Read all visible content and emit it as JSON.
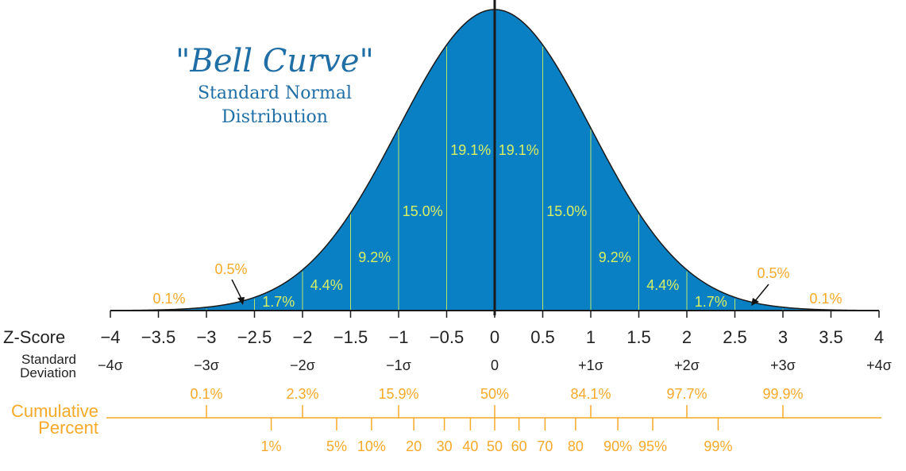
{
  "colors": {
    "fill": "#0a80c4",
    "segment_text": "#d7f063",
    "tail_text": "#f7a928",
    "cumulative": "#f7a928",
    "title": "#1f6fa6"
  },
  "title": {
    "main": "\"Bell Curve\"",
    "line1": "Standard Normal",
    "line2": "Distribution"
  },
  "chart_data": {
    "type": "area",
    "xlim": [
      -4,
      4
    ],
    "segments": [
      {
        "z": -0.25,
        "label": "19.1%"
      },
      {
        "z": 0.25,
        "label": "19.1%"
      },
      {
        "z": -0.75,
        "label": "15.0%"
      },
      {
        "z": 0.75,
        "label": "15.0%"
      },
      {
        "z": -1.25,
        "label": "9.2%"
      },
      {
        "z": 1.25,
        "label": "9.2%"
      },
      {
        "z": -1.75,
        "label": "4.4%"
      },
      {
        "z": 1.75,
        "label": "4.4%"
      },
      {
        "z": -2.25,
        "label": "1.7%"
      },
      {
        "z": 2.25,
        "label": "1.7%"
      }
    ],
    "tails": [
      {
        "label": "0.5%",
        "z": -2.75
      },
      {
        "label": "0.5%",
        "z": 2.75
      },
      {
        "label": "0.1%",
        "z": -3.3
      },
      {
        "label": "0.1%",
        "z": 3.3
      }
    ],
    "zscore_label": "Z-Score",
    "zscore_ticks": [
      "−4",
      "−3.5",
      "−3",
      "−2.5",
      "−2",
      "−1.5",
      "−1",
      "−0.5",
      "0",
      "0.5",
      "1",
      "1.5",
      "2",
      "2.5",
      "3",
      "3.5",
      "4"
    ],
    "zscore_values": [
      -4,
      -3.5,
      -3,
      -2.5,
      -2,
      -1.5,
      -1,
      -0.5,
      0,
      0.5,
      1,
      1.5,
      2,
      2.5,
      3,
      3.5,
      4
    ],
    "stddev_label_1": "Standard",
    "stddev_label_2": "Deviation",
    "stddev_ticks": [
      {
        "z": -4,
        "label": "−4σ"
      },
      {
        "z": -3,
        "label": "−3σ"
      },
      {
        "z": -2,
        "label": "−2σ"
      },
      {
        "z": -1,
        "label": "−1σ"
      },
      {
        "z": 0,
        "label": "0"
      },
      {
        "z": 1,
        "label": "+1σ"
      },
      {
        "z": 2,
        "label": "+2σ"
      },
      {
        "z": 3,
        "label": "+3σ"
      },
      {
        "z": 4,
        "label": "+4σ"
      }
    ],
    "cumulative_title_1": "Cumulative",
    "cumulative_title_2": "Percent",
    "cumulative_upper": [
      {
        "z": -3,
        "label": "0.1%"
      },
      {
        "z": -2,
        "label": "2.3%"
      },
      {
        "z": -1,
        "label": "15.9%"
      },
      {
        "z": 0,
        "label": "50%"
      },
      {
        "z": 1,
        "label": "84.1%"
      },
      {
        "z": 2,
        "label": "97.7%"
      },
      {
        "z": 3,
        "label": "99.9%"
      }
    ],
    "cumulative_lower": [
      {
        "z": -2.326,
        "label": "1%"
      },
      {
        "z": -1.645,
        "label": "5%"
      },
      {
        "z": -1.282,
        "label": "10%"
      },
      {
        "z": -0.842,
        "label": "20"
      },
      {
        "z": -0.524,
        "label": "30"
      },
      {
        "z": -0.253,
        "label": "40"
      },
      {
        "z": 0,
        "label": "50"
      },
      {
        "z": 0.253,
        "label": "60"
      },
      {
        "z": 0.524,
        "label": "70"
      },
      {
        "z": 0.842,
        "label": "80"
      },
      {
        "z": 1.282,
        "label": "90%"
      },
      {
        "z": 1.645,
        "label": "95%"
      },
      {
        "z": 2.326,
        "label": "99%"
      }
    ]
  }
}
